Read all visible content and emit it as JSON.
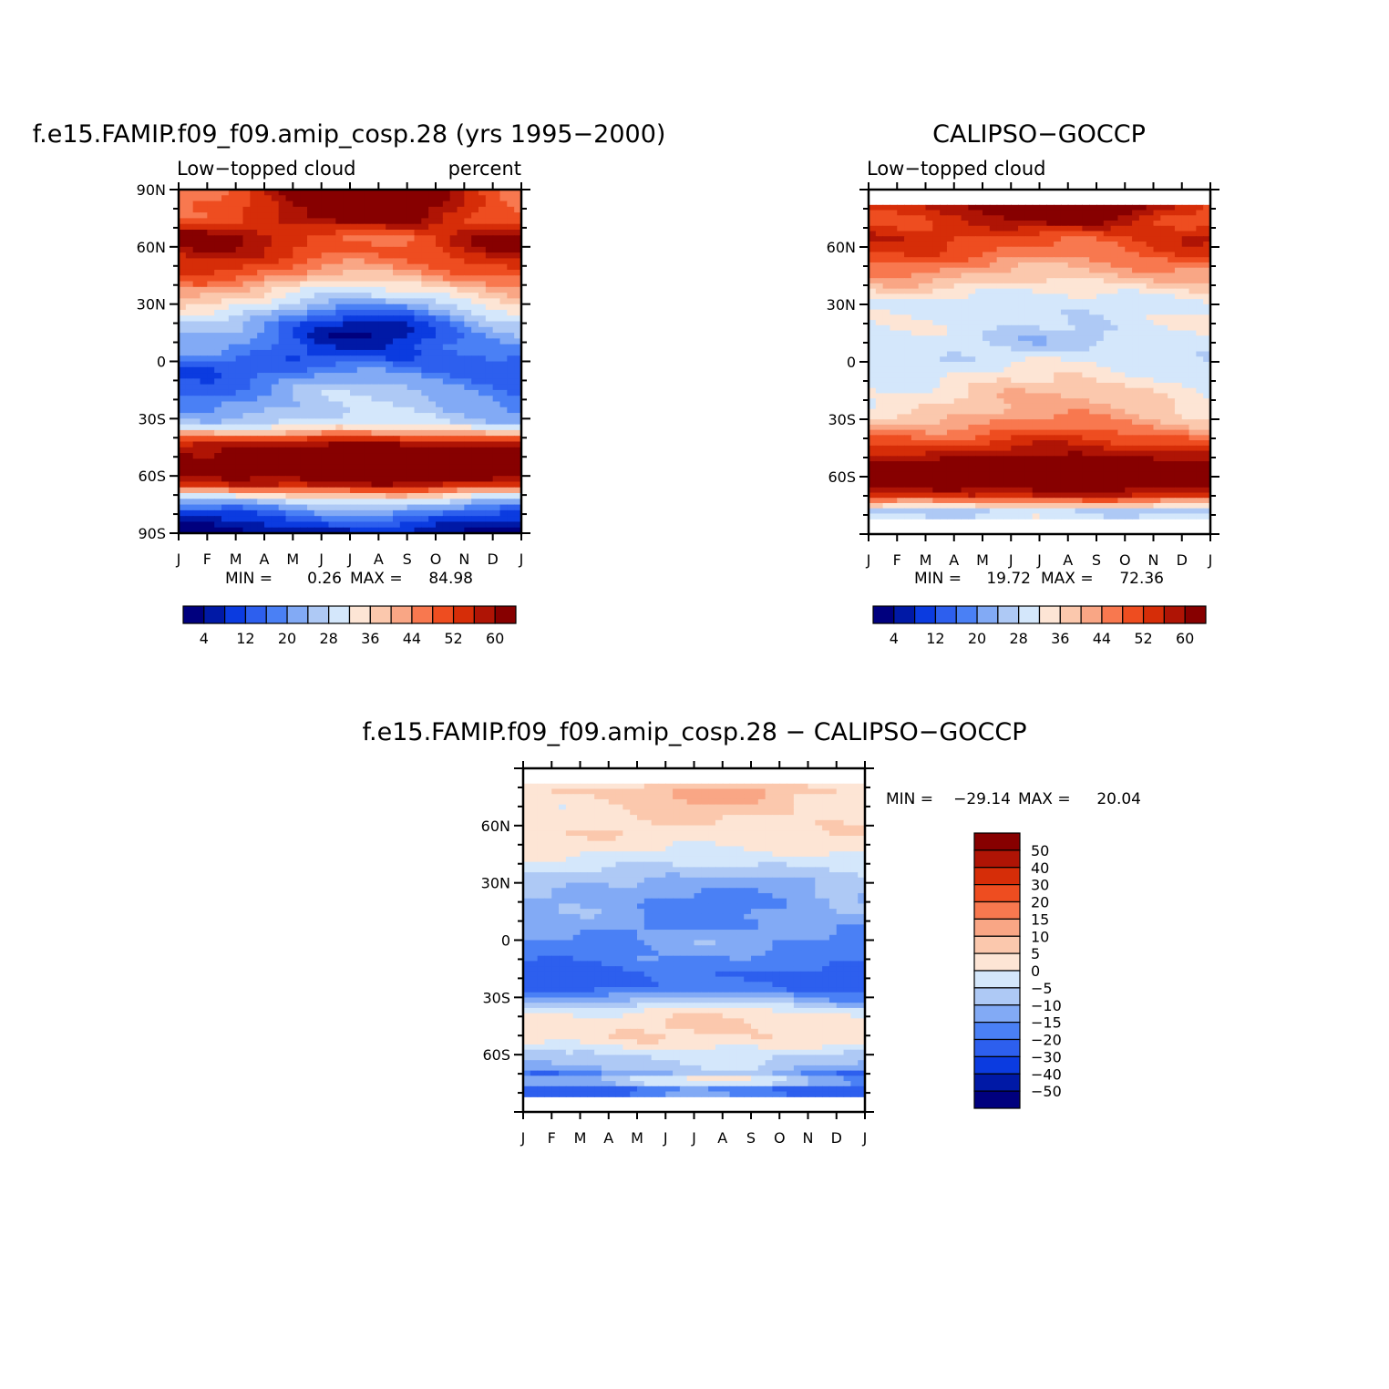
{
  "palette": {
    "abs": [
      "#00007e",
      "#0019a6",
      "#0b3be0",
      "#2d5fee",
      "#4a80f5",
      "#82aaf5",
      "#aec9f5",
      "#d4e7fb",
      "#fde5d5",
      "#fbc8ad",
      "#f9a685",
      "#f8784f",
      "#ee4d20",
      "#d62d08",
      "#af1405",
      "#870000"
    ],
    "diff": [
      "#00007e",
      "#0019a6",
      "#0b3be0",
      "#2d5fee",
      "#4a80f5",
      "#82aaf5",
      "#aec9f5",
      "#d4e7fb",
      "#fde5d5",
      "#fbc8ad",
      "#f9a685",
      "#f8784f",
      "#ee4d20",
      "#d62d08",
      "#af1405",
      "#870000"
    ]
  },
  "chart_data": [
    {
      "id": "model",
      "type": "heatmap",
      "title": "f.e15.FAMIP.f09_f09.amip_cosp.28 (yrs 1995-2000)",
      "left_label": "Low-topped cloud",
      "right_label": "percent",
      "xlabels": [
        "J",
        "F",
        "M",
        "A",
        "M",
        "J",
        "J",
        "A",
        "S",
        "O",
        "N",
        "D",
        "J"
      ],
      "ylabels": [
        "90N",
        "60N",
        "30N",
        "0",
        "30S",
        "60S",
        "90S"
      ],
      "ylim": [
        -90,
        90
      ],
      "data_lat_range": [
        -90,
        90
      ],
      "min_label": "MIN =",
      "min_value": "0.26",
      "max_label": "MAX =",
      "max_value": "84.98",
      "levels": [
        4,
        8,
        12,
        16,
        20,
        24,
        28,
        32,
        36,
        40,
        44,
        48,
        52,
        56,
        60
      ],
      "colorbar_labels": [
        "4",
        "12",
        "20",
        "28",
        "36",
        "44",
        "52",
        "60"
      ],
      "lat_profile": [
        [
          -90,
          4
        ],
        [
          -84,
          10
        ],
        [
          -78,
          18
        ],
        [
          -72,
          30
        ],
        [
          -68,
          44
        ],
        [
          -64,
          58
        ],
        [
          -55,
          66
        ],
        [
          -45,
          62
        ],
        [
          -40,
          50
        ],
        [
          -36,
          36
        ],
        [
          -32,
          28
        ],
        [
          -26,
          24
        ],
        [
          -18,
          22
        ],
        [
          -10,
          19
        ],
        [
          -4,
          15
        ],
        [
          2,
          14
        ],
        [
          8,
          15
        ],
        [
          14,
          14
        ],
        [
          20,
          17
        ],
        [
          26,
          24
        ],
        [
          32,
          31
        ],
        [
          38,
          37
        ],
        [
          44,
          44
        ],
        [
          50,
          49
        ],
        [
          56,
          53
        ],
        [
          62,
          56
        ],
        [
          70,
          55
        ],
        [
          78,
          57
        ],
        [
          84,
          58
        ],
        [
          90,
          58
        ]
      ],
      "season_amp": [
        [
          -90,
          3
        ],
        [
          -80,
          6
        ],
        [
          -70,
          4
        ],
        [
          -60,
          2
        ],
        [
          -40,
          2
        ],
        [
          -25,
          5
        ],
        [
          -15,
          7
        ],
        [
          -5,
          4
        ],
        [
          5,
          -6
        ],
        [
          15,
          -11
        ],
        [
          25,
          -10
        ],
        [
          35,
          -7
        ],
        [
          45,
          -6
        ],
        [
          55,
          -5
        ],
        [
          65,
          -10
        ],
        [
          75,
          9
        ],
        [
          85,
          12
        ],
        [
          90,
          12
        ]
      ]
    },
    {
      "id": "obs",
      "type": "heatmap",
      "title": "CALIPSO-GOCCP",
      "left_label": "Low-topped cloud",
      "right_label": "",
      "xlabels": [
        "J",
        "F",
        "M",
        "A",
        "M",
        "J",
        "J",
        "A",
        "S",
        "O",
        "N",
        "D",
        "J"
      ],
      "ylabels": [
        "60N",
        "30N",
        "0",
        "30S",
        "60S"
      ],
      "ylim": [
        -90,
        90
      ],
      "data_lat_range": [
        -82,
        82
      ],
      "min_label": "MIN =",
      "min_value": "19.72",
      "max_label": "MAX =",
      "max_value": "72.36",
      "levels": [
        4,
        8,
        12,
        16,
        20,
        24,
        28,
        32,
        36,
        40,
        44,
        48,
        52,
        56,
        60
      ],
      "colorbar_labels": [
        "4",
        "12",
        "20",
        "28",
        "36",
        "44",
        "52",
        "60"
      ],
      "lat_profile": [
        [
          -82,
          30
        ],
        [
          -78,
          27
        ],
        [
          -74,
          40
        ],
        [
          -70,
          55
        ],
        [
          -64,
          64
        ],
        [
          -56,
          66
        ],
        [
          -48,
          58
        ],
        [
          -42,
          52
        ],
        [
          -36,
          46
        ],
        [
          -30,
          41
        ],
        [
          -24,
          38
        ],
        [
          -16,
          36
        ],
        [
          -8,
          33
        ],
        [
          0,
          30
        ],
        [
          6,
          29
        ],
        [
          12,
          28
        ],
        [
          18,
          30
        ],
        [
          24,
          31
        ],
        [
          30,
          30
        ],
        [
          36,
          33
        ],
        [
          42,
          38
        ],
        [
          50,
          44
        ],
        [
          58,
          50
        ],
        [
          66,
          53
        ],
        [
          74,
          56
        ],
        [
          80,
          61
        ],
        [
          82,
          62
        ]
      ],
      "season_amp": [
        [
          -82,
          1
        ],
        [
          -70,
          2
        ],
        [
          -60,
          1
        ],
        [
          -45,
          2
        ],
        [
          -30,
          4
        ],
        [
          -20,
          5
        ],
        [
          -10,
          3
        ],
        [
          0,
          2
        ],
        [
          10,
          -3
        ],
        [
          20,
          -2
        ],
        [
          30,
          -1
        ],
        [
          40,
          -3
        ],
        [
          55,
          -4
        ],
        [
          65,
          -4
        ],
        [
          75,
          8
        ],
        [
          82,
          10
        ]
      ]
    },
    {
      "id": "diff",
      "type": "heatmap",
      "title": "f.e15.FAMIP.f09_f09.amip_cosp.28 - CALIPSO-GOCCP",
      "left_label": "",
      "right_label": "",
      "xlabels": [
        "J",
        "F",
        "M",
        "A",
        "M",
        "J",
        "J",
        "A",
        "S",
        "O",
        "N",
        "D",
        "J"
      ],
      "ylabels": [
        "60N",
        "30N",
        "0",
        "30S",
        "60S"
      ],
      "ylim": [
        -90,
        90
      ],
      "data_lat_range": [
        -82,
        82
      ],
      "min_label": "MIN =",
      "min_value": "-29.14",
      "max_label": "MAX =",
      "max_value": "20.04",
      "levels": [
        -50,
        -40,
        -30,
        -20,
        -15,
        -10,
        -5,
        0,
        5,
        10,
        15,
        20,
        30,
        40,
        50
      ],
      "colorbar_labels": [
        "50",
        "40",
        "30",
        "20",
        "15",
        "10",
        "5",
        "0",
        "-5",
        "-10",
        "-15",
        "-20",
        "-30",
        "-40",
        "-50"
      ],
      "lat_profile": [
        [
          -82,
          -18
        ],
        [
          -78,
          -22
        ],
        [
          -74,
          -2
        ],
        [
          -70,
          -14
        ],
        [
          -66,
          -8
        ],
        [
          -60,
          -5
        ],
        [
          -52,
          4
        ],
        [
          -44,
          4
        ],
        [
          -38,
          1
        ],
        [
          -32,
          -10
        ],
        [
          -26,
          -20
        ],
        [
          -18,
          -22
        ],
        [
          -10,
          -17
        ],
        [
          -4,
          -15
        ],
        [
          2,
          -14
        ],
        [
          8,
          -15
        ],
        [
          14,
          -13
        ],
        [
          20,
          -14
        ],
        [
          26,
          -12
        ],
        [
          32,
          -9
        ],
        [
          38,
          -5
        ],
        [
          44,
          -1
        ],
        [
          50,
          2
        ],
        [
          56,
          4
        ],
        [
          62,
          4
        ],
        [
          70,
          5
        ],
        [
          78,
          8
        ],
        [
          82,
          4
        ]
      ],
      "season_amp": [
        [
          -82,
          4
        ],
        [
          -72,
          8
        ],
        [
          -66,
          4
        ],
        [
          -50,
          1
        ],
        [
          -30,
          4
        ],
        [
          -20,
          3
        ],
        [
          -10,
          2
        ],
        [
          0,
          3
        ],
        [
          10,
          -4
        ],
        [
          20,
          -3
        ],
        [
          30,
          -3
        ],
        [
          40,
          -1
        ],
        [
          55,
          -1
        ],
        [
          65,
          2
        ],
        [
          75,
          6
        ],
        [
          82,
          2
        ]
      ]
    }
  ]
}
